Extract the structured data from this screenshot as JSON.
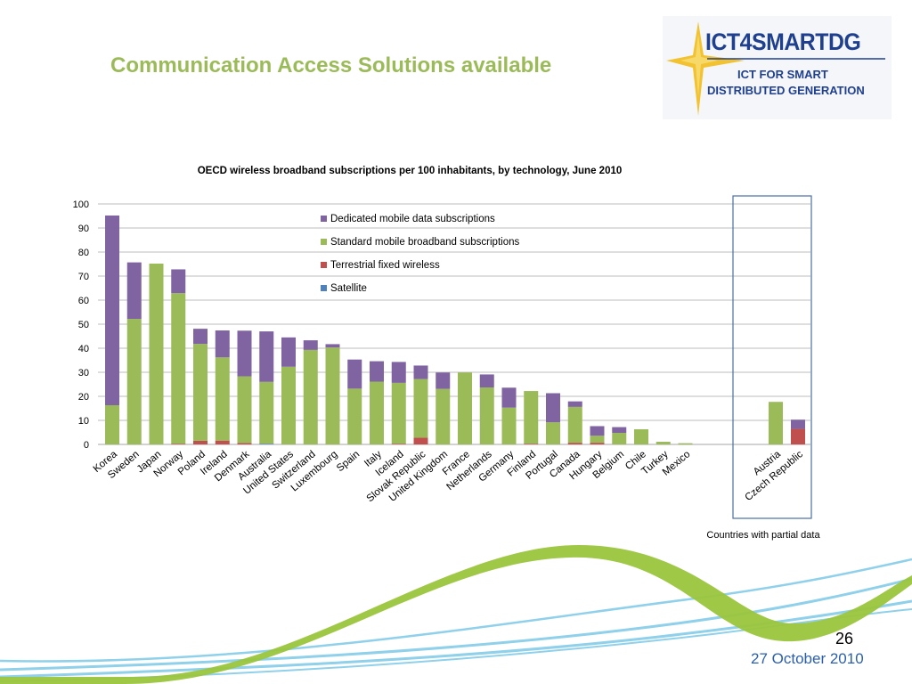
{
  "slide": {
    "title": "Communication Access Solutions available",
    "page_number": "26",
    "date": "27 October 2010"
  },
  "logo": {
    "title": "ICT4SMARTDG",
    "subtitle_line1": "ICT FOR SMART",
    "subtitle_line2": "DISTRIBUTED GENERATION",
    "color": "#1f3f8f",
    "star_color": "#f2c230"
  },
  "chart_data": {
    "type": "bar",
    "stacked": true,
    "title": "OECD wireless broadband subscriptions per 100 inhabitants, by technology, June 2010",
    "xlabel": "",
    "ylabel": "",
    "ylim": [
      0,
      100
    ],
    "yticks": [
      0,
      10,
      20,
      30,
      40,
      50,
      60,
      70,
      80,
      90,
      100
    ],
    "grid": true,
    "legend_placement": "top-center",
    "categories": [
      "Korea",
      "Sweden",
      "Japan",
      "Norway",
      "Poland",
      "Ireland",
      "Denmark",
      "Australia",
      "United States",
      "Switzerland",
      "Luxembourg",
      "Spain",
      "Italy",
      "Iceland",
      "Slovak Republic",
      "United Kingdom",
      "France",
      "Netherlands",
      "Germany",
      "Finland",
      "Portugal",
      "Canada",
      "Hungary",
      "Belgium",
      "Chile",
      "Turkey",
      "Mexico",
      "Austria",
      "Czech Republic"
    ],
    "series": [
      {
        "name": "Satellite",
        "color": "#4f81bd",
        "values": [
          0,
          0,
          0,
          0,
          0,
          0,
          0,
          0.3,
          0,
          0,
          0,
          0,
          0,
          0,
          0,
          0,
          0,
          0,
          0,
          0,
          0,
          0,
          0,
          0,
          0,
          0,
          0,
          0,
          0
        ]
      },
      {
        "name": "Terrestrial fixed wireless",
        "color": "#c0504d",
        "values": [
          0,
          0,
          0,
          0.3,
          1.5,
          1.6,
          0.6,
          0,
          0,
          0,
          0,
          0,
          0,
          0.3,
          2.8,
          0,
          0,
          0,
          0,
          0.3,
          0,
          0.7,
          0.7,
          0,
          0,
          0,
          0,
          0,
          6.5
        ]
      },
      {
        "name": "Standard mobile broadband subscriptions",
        "color": "#9bbb59",
        "values": [
          16.3,
          52.2,
          75.2,
          62.6,
          40.3,
          34.6,
          27.7,
          25.7,
          32.3,
          39.3,
          40.3,
          23.2,
          26.1,
          25.3,
          24.4,
          23.1,
          29.9,
          23.7,
          15.3,
          21.9,
          9.2,
          14.9,
          2.9,
          4.8,
          6.3,
          1.1,
          0.5,
          17.7,
          0
        ]
      },
      {
        "name": "Dedicated mobile data subscriptions",
        "color": "#8064a2",
        "values": [
          78.9,
          23.5,
          0,
          9.9,
          6.3,
          11.2,
          19.0,
          21.0,
          12.2,
          4.0,
          1.4,
          12.1,
          8.5,
          8.7,
          5.6,
          6.8,
          0,
          5.4,
          8.3,
          0,
          12.1,
          2.3,
          4.0,
          2.4,
          0,
          0,
          0,
          0,
          3.8
        ]
      }
    ],
    "legend_order": [
      "Dedicated mobile data subscriptions",
      "Standard mobile broadband subscriptions",
      "Terrestrial fixed wireless",
      "Satellite"
    ],
    "annotation": "Countries with partial data",
    "partial_data_countries": [
      "Austria",
      "Czech Republic"
    ]
  }
}
